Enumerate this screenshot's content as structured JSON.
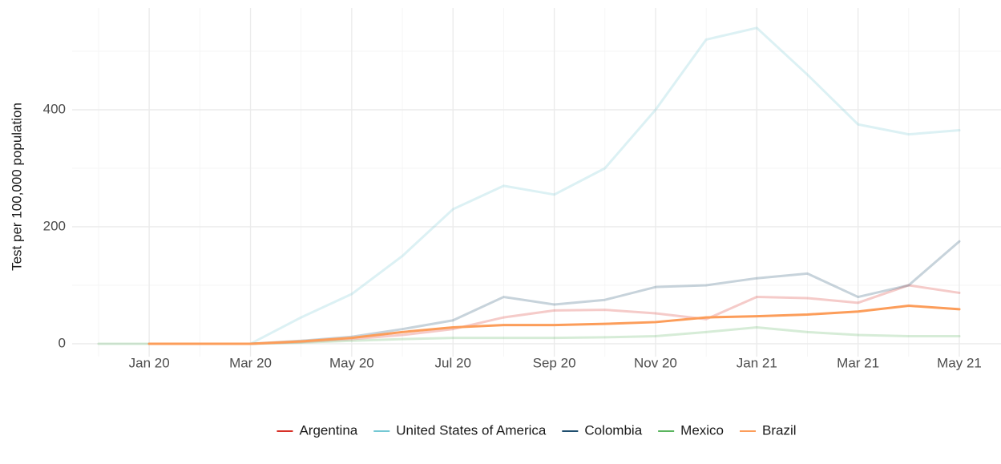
{
  "chart_data": {
    "type": "line",
    "ylabel": "Test per 100,000 population",
    "x": [
      "2019-12",
      "2020-01",
      "2020-02",
      "2020-03",
      "2020-04",
      "2020-05",
      "2020-06",
      "2020-07",
      "2020-08",
      "2020-09",
      "2020-10",
      "2020-11",
      "2020-12",
      "2021-01",
      "2021-02",
      "2021-03",
      "2021-04",
      "2021-05"
    ],
    "xlim": [
      "2019-12",
      "2021-05"
    ],
    "xticks": [
      {
        "value": "2020-01",
        "label": "Jan 20"
      },
      {
        "value": "2020-03",
        "label": "Mar 20"
      },
      {
        "value": "2020-05",
        "label": "May 20"
      },
      {
        "value": "2020-07",
        "label": "Jul 20"
      },
      {
        "value": "2020-09",
        "label": "Sep 20"
      },
      {
        "value": "2020-11",
        "label": "Nov 20"
      },
      {
        "value": "2021-01",
        "label": "Jan 21"
      },
      {
        "value": "2021-03",
        "label": "Mar 21"
      },
      {
        "value": "2021-05",
        "label": "May 21"
      }
    ],
    "ylim": [
      -22,
      574
    ],
    "yticks": [
      0,
      200,
      400
    ],
    "grid": true,
    "legend": "bottom",
    "series": [
      {
        "name": "Argentina",
        "color": "#d73027",
        "values": [
          null,
          0,
          0,
          0,
          3,
          8,
          15,
          25,
          45,
          57,
          58,
          52,
          42,
          80,
          78,
          70,
          100,
          87
        ]
      },
      {
        "name": "United States of America",
        "color": "#74c8d4",
        "values": [
          null,
          null,
          null,
          0,
          45,
          85,
          150,
          230,
          270,
          255,
          300,
          400,
          520,
          540,
          460,
          375,
          358,
          365
        ]
      },
      {
        "name": "Colombia",
        "color": "#1f4e6e",
        "values": [
          null,
          0,
          0,
          0,
          5,
          12,
          25,
          40,
          80,
          67,
          75,
          97,
          100,
          112,
          120,
          80,
          100,
          175
        ]
      },
      {
        "name": "Mexico",
        "color": "#5ab55e",
        "values": [
          0,
          0,
          0,
          0,
          2,
          5,
          8,
          10,
          10,
          10,
          11,
          13,
          20,
          28,
          20,
          15,
          13,
          13
        ]
      },
      {
        "name": "Brazil",
        "color": "#fc9d5a",
        "values": [
          null,
          0,
          0,
          0,
          4,
          10,
          20,
          28,
          32,
          32,
          34,
          37,
          45,
          47,
          50,
          55,
          65,
          59
        ]
      }
    ]
  }
}
